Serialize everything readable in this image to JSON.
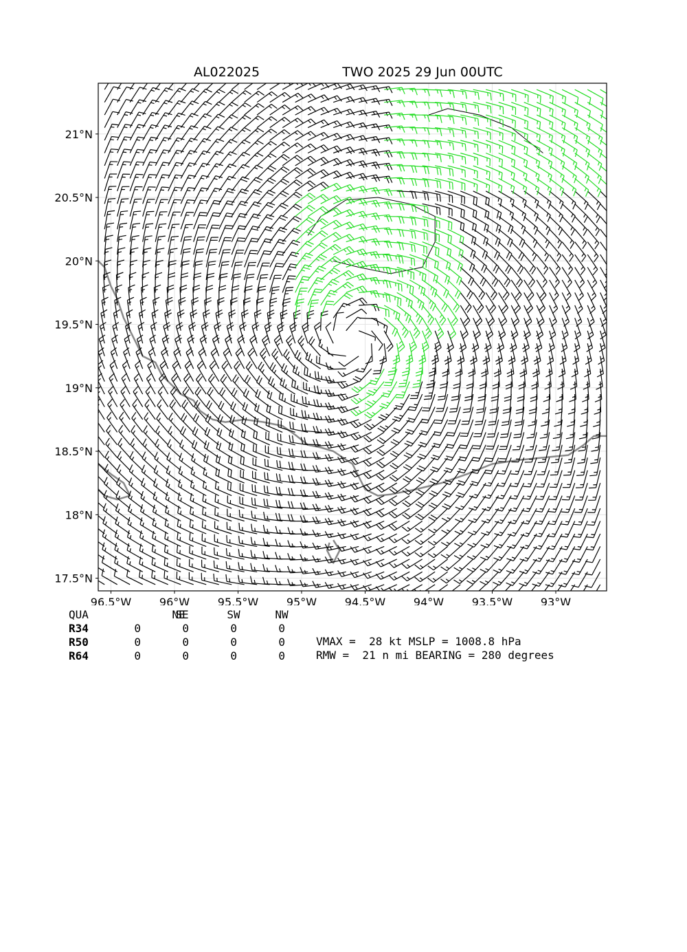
{
  "titles": {
    "left": "AL022025",
    "right": "TWO 2025 29 Jun 00UTC"
  },
  "chart_data": {
    "type": "wind-barb map",
    "xlim": [
      -96.6,
      -92.6
    ],
    "ylim": [
      17.4,
      21.4
    ],
    "xticks": [
      {
        "value": -96.5,
        "label": "96.5°W"
      },
      {
        "value": -96.0,
        "label": "96°W"
      },
      {
        "value": -95.5,
        "label": "95.5°W"
      },
      {
        "value": -95.0,
        "label": "95°W"
      },
      {
        "value": -94.5,
        "label": "94.5°W"
      },
      {
        "value": -94.0,
        "label": "94°W"
      },
      {
        "value": -93.5,
        "label": "93.5°W"
      },
      {
        "value": -93.0,
        "label": "93°W"
      }
    ],
    "yticks": [
      {
        "value": 17.5,
        "label": "17.5°N"
      },
      {
        "value": 18.0,
        "label": "18°N"
      },
      {
        "value": 18.5,
        "label": "18.5°N"
      },
      {
        "value": 19.0,
        "label": "19°N"
      },
      {
        "value": 19.5,
        "label": "19.5°N"
      },
      {
        "value": 20.0,
        "label": "20°N"
      },
      {
        "value": 20.5,
        "label": "20.5°N"
      },
      {
        "value": 21.0,
        "label": "21°N"
      }
    ],
    "grid": true,
    "center": {
      "lon": -94.6,
      "lat": 19.38
    },
    "vmax_kt": 28,
    "rmw_nmi": 21,
    "colors": {
      "barb": "#000000",
      "barb_strong": "#22dd22",
      "coast": "#888888",
      "contour": "#000000"
    }
  },
  "table": {
    "headers": [
      "QUA",
      "NE",
      "SE",
      "SW",
      "NW"
    ],
    "rows": [
      {
        "label": "R34",
        "values": [
          "0",
          "0",
          "0",
          "0"
        ]
      },
      {
        "label": "R50",
        "values": [
          "0",
          "0",
          "0",
          "0"
        ]
      },
      {
        "label": "R64",
        "values": [
          "0",
          "0",
          "0",
          "0"
        ]
      }
    ]
  },
  "stats": {
    "line1": "VMAX =  28 kt MSLP = 1008.8 hPa",
    "line2": "RMW =  21 n mi BEARING = 280 degrees"
  }
}
